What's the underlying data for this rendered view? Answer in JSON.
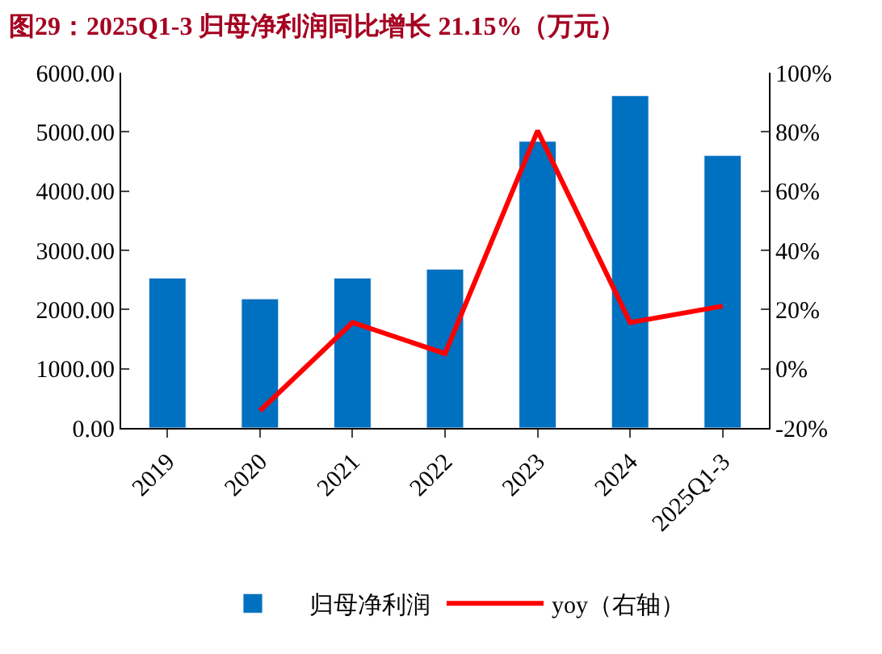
{
  "chart_data": {
    "type": "bar",
    "title": "图29：2025Q1-3 归母净利润同比增长 21.15%（万元）",
    "categories": [
      "2019",
      "2020",
      "2021",
      "2022",
      "2023",
      "2024",
      "2025Q1-3"
    ],
    "series": [
      {
        "name": "归母净利润",
        "color": "#0070c0",
        "values": [
          2530,
          2180,
          2530,
          2680,
          4840,
          5610,
          4600
        ]
      },
      {
        "name": "yoy（右轴）",
        "type": "line",
        "axis": "y2",
        "color": "#ff0000",
        "values": [
          null,
          -14.2,
          15.6,
          5.1,
          80.4,
          15.6,
          21.15
        ]
      }
    ],
    "ylim": [
      0,
      6000
    ],
    "yticks": [
      {
        "value": 0,
        "label": "0.00"
      },
      {
        "value": 1000,
        "label": "1000.00"
      },
      {
        "value": 2000,
        "label": "2000.00"
      },
      {
        "value": 3000,
        "label": "3000.00"
      },
      {
        "value": 4000,
        "label": "4000.00"
      },
      {
        "value": 5000,
        "label": "5000.00"
      },
      {
        "value": 6000,
        "label": "6000.00"
      }
    ],
    "y2lim": [
      -20,
      100
    ],
    "y2ticks": [
      {
        "value": -20,
        "label": "-20%"
      },
      {
        "value": 0,
        "label": "0%"
      },
      {
        "value": 20,
        "label": "20%"
      },
      {
        "value": 40,
        "label": "40%"
      },
      {
        "value": 60,
        "label": "60%"
      },
      {
        "value": 80,
        "label": "80%"
      },
      {
        "value": 100,
        "label": "100%"
      }
    ],
    "legend": "bottom",
    "marker": "none",
    "line_style": "solid"
  }
}
